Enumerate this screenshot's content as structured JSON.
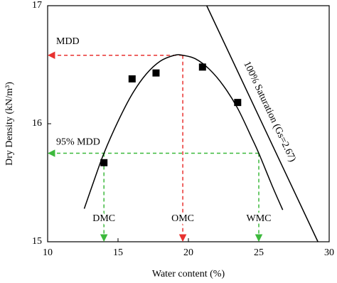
{
  "chart_data": {
    "type": "scatter",
    "x_label": "Water content (%)",
    "y_label": "Dry Density (kN/m³)",
    "xlim": [
      10,
      30
    ],
    "ylim": [
      15,
      17
    ],
    "xticks": [
      10,
      15,
      20,
      25,
      30
    ],
    "yticks": [
      15,
      16,
      17
    ],
    "series": [
      {
        "style": "marker",
        "color": "#000000",
        "x": [
          14.0,
          16.0,
          17.7,
          21.0,
          23.5
        ],
        "values": [
          15.67,
          16.38,
          16.43,
          16.48,
          16.18
        ]
      },
      {
        "style": "curve",
        "color": "#000000",
        "x": [
          12.6,
          13.3,
          14.0,
          15,
          16,
          17,
          18,
          19,
          19.6,
          20.5,
          21.5,
          22.5,
          23.5,
          24.5,
          25,
          26,
          26.7
        ],
        "values": [
          15.28,
          15.52,
          15.75,
          16.02,
          16.25,
          16.42,
          16.53,
          16.58,
          16.58,
          16.55,
          16.46,
          16.32,
          16.13,
          15.88,
          15.75,
          15.46,
          15.27
        ]
      },
      {
        "style": "line",
        "color": "#000000",
        "label": "100% Saturation (Gs=2.67)",
        "x": [
          21.3,
          29.2
        ],
        "values": [
          17,
          15
        ]
      }
    ],
    "annotations": [
      {
        "text": "MDD",
        "x": 19.6,
        "y": 16.58,
        "color": "#e8312f",
        "direction": "left"
      },
      {
        "text": "OMC",
        "x": 19.6,
        "y": 16.58,
        "color": "#e8312f",
        "direction": "down"
      },
      {
        "text": "95% MDD",
        "x": 25,
        "y": 15.75,
        "color": "#3cb93c",
        "direction": "left"
      },
      {
        "text": "DMC",
        "x": 14,
        "y": 15.75,
        "color": "#3cb93c",
        "direction": "down"
      },
      {
        "text": "WMC",
        "x": 25,
        "y": 15.75,
        "color": "#3cb93c",
        "direction": "down"
      }
    ]
  }
}
